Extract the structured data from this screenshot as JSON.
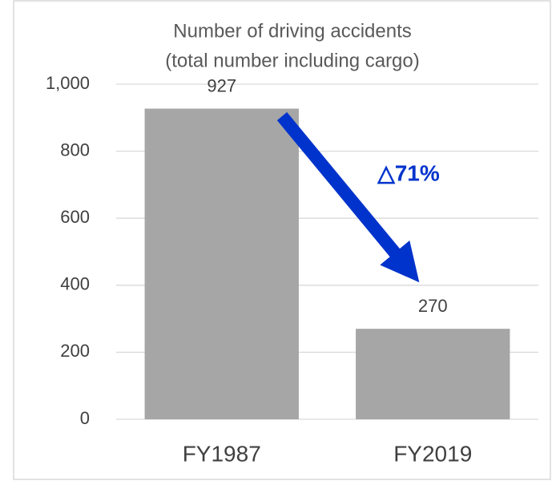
{
  "chart_data": {
    "type": "bar",
    "title": [
      "Number of driving accidents",
      "(total number including cargo)"
    ],
    "categories": [
      "FY1987",
      "FY2019"
    ],
    "values": [
      927,
      270
    ],
    "color": "#a6a6a6",
    "ylim": [
      0,
      1000
    ],
    "yticks": [
      0,
      200,
      400,
      600,
      800,
      {
        "value": 1000,
        "label": "1,000"
      }
    ],
    "grid": true,
    "annotations": [
      {
        "text": "△71%",
        "color": "#0033cc"
      }
    ]
  }
}
